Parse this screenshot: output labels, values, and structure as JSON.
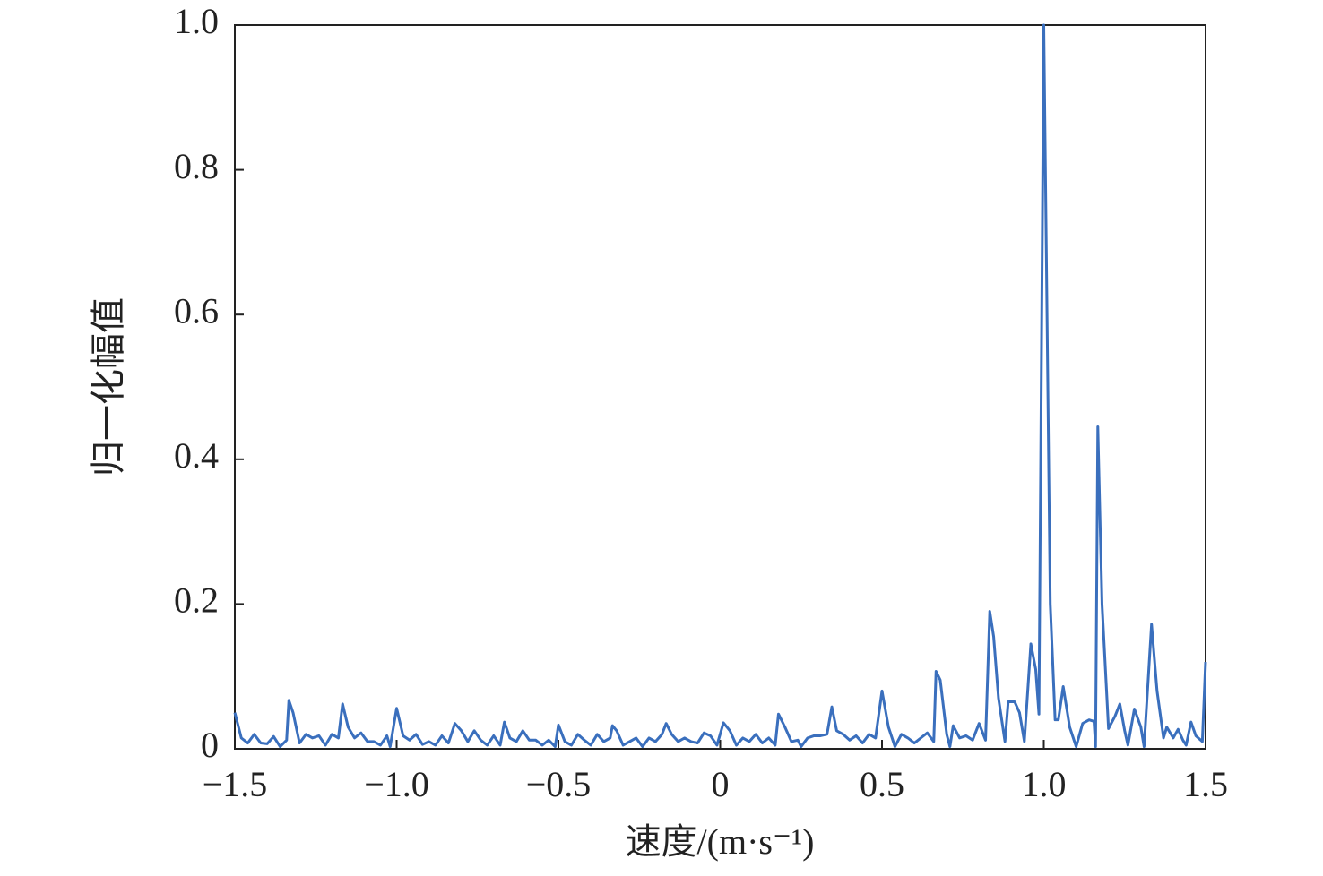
{
  "chart_data": {
    "type": "line",
    "xlabel": "速度/(m·s⁻¹)",
    "ylabel": "归一化幅值",
    "x": [
      -1.5,
      -1.48,
      -1.46,
      -1.44,
      -1.42,
      -1.4,
      -1.38,
      -1.36,
      -1.34,
      -1.333,
      -1.32,
      -1.3,
      -1.28,
      -1.26,
      -1.24,
      -1.22,
      -1.2,
      -1.18,
      -1.167,
      -1.15,
      -1.13,
      -1.11,
      -1.09,
      -1.07,
      -1.05,
      -1.03,
      -1.02,
      -1.0,
      -0.98,
      -0.96,
      -0.94,
      -0.92,
      -0.9,
      -0.88,
      -0.86,
      -0.84,
      -0.82,
      -0.8,
      -0.78,
      -0.76,
      -0.74,
      -0.72,
      -0.7,
      -0.68,
      -0.667,
      -0.65,
      -0.63,
      -0.61,
      -0.59,
      -0.57,
      -0.55,
      -0.53,
      -0.51,
      -0.5,
      -0.48,
      -0.46,
      -0.44,
      -0.42,
      -0.4,
      -0.38,
      -0.36,
      -0.34,
      -0.333,
      -0.32,
      -0.3,
      -0.28,
      -0.26,
      -0.24,
      -0.22,
      -0.2,
      -0.18,
      -0.167,
      -0.15,
      -0.13,
      -0.11,
      -0.09,
      -0.07,
      -0.05,
      -0.03,
      -0.01,
      0.01,
      0.03,
      0.05,
      0.07,
      0.09,
      0.11,
      0.13,
      0.15,
      0.17,
      0.18,
      0.2,
      0.22,
      0.24,
      0.25,
      0.27,
      0.29,
      0.31,
      0.33,
      0.345,
      0.36,
      0.38,
      0.4,
      0.42,
      0.44,
      0.46,
      0.48,
      0.5,
      0.52,
      0.54,
      0.56,
      0.58,
      0.6,
      0.62,
      0.64,
      0.66,
      0.667,
      0.68,
      0.7,
      0.71,
      0.72,
      0.74,
      0.76,
      0.78,
      0.8,
      0.82,
      0.833,
      0.845,
      0.86,
      0.88,
      0.89,
      0.91,
      0.925,
      0.94,
      0.96,
      0.975,
      0.985,
      1.0,
      1.02,
      1.035,
      1.045,
      1.06,
      1.08,
      1.1,
      1.12,
      1.14,
      1.155,
      1.16,
      1.167,
      1.18,
      1.2,
      1.22,
      1.235,
      1.25,
      1.26,
      1.28,
      1.3,
      1.31,
      1.333,
      1.35,
      1.37,
      1.38,
      1.4,
      1.415,
      1.43,
      1.44,
      1.455,
      1.47,
      1.49,
      1.5
    ],
    "series": [
      {
        "color": "#3a6fbd",
        "values": [
          0.05,
          0.015,
          0.008,
          0.02,
          0.008,
          0.007,
          0.017,
          0.003,
          0.012,
          0.067,
          0.05,
          0.008,
          0.02,
          0.015,
          0.018,
          0.005,
          0.02,
          0.015,
          0.062,
          0.03,
          0.015,
          0.022,
          0.01,
          0.01,
          0.005,
          0.018,
          0.003,
          0.056,
          0.018,
          0.012,
          0.02,
          0.006,
          0.01,
          0.005,
          0.018,
          0.008,
          0.035,
          0.025,
          0.01,
          0.025,
          0.012,
          0.005,
          0.018,
          0.005,
          0.037,
          0.015,
          0.01,
          0.025,
          0.012,
          0.012,
          0.005,
          0.012,
          0.003,
          0.033,
          0.01,
          0.005,
          0.02,
          0.012,
          0.005,
          0.02,
          0.01,
          0.015,
          0.032,
          0.025,
          0.005,
          0.01,
          0.015,
          0.003,
          0.015,
          0.01,
          0.02,
          0.035,
          0.02,
          0.01,
          0.015,
          0.01,
          0.008,
          0.022,
          0.018,
          0.005,
          0.036,
          0.025,
          0.005,
          0.015,
          0.01,
          0.02,
          0.008,
          0.015,
          0.005,
          0.048,
          0.03,
          0.01,
          0.012,
          0.003,
          0.015,
          0.018,
          0.018,
          0.02,
          0.058,
          0.025,
          0.02,
          0.012,
          0.018,
          0.008,
          0.02,
          0.015,
          0.08,
          0.03,
          0.003,
          0.02,
          0.015,
          0.008,
          0.015,
          0.022,
          0.01,
          0.107,
          0.095,
          0.02,
          0.003,
          0.032,
          0.015,
          0.018,
          0.012,
          0.035,
          0.012,
          0.19,
          0.155,
          0.07,
          0.01,
          0.065,
          0.065,
          0.05,
          0.01,
          0.145,
          0.11,
          0.048,
          1.0,
          0.2,
          0.04,
          0.04,
          0.086,
          0.03,
          0.003,
          0.035,
          0.04,
          0.038,
          0.003,
          0.445,
          0.2,
          0.028,
          0.045,
          0.062,
          0.025,
          0.005,
          0.055,
          0.03,
          0.003,
          0.172,
          0.08,
          0.015,
          0.03,
          0.015,
          0.027,
          0.012,
          0.005,
          0.037,
          0.018,
          0.01,
          0.12
        ]
      }
    ],
    "xlim": [
      -1.5,
      1.5
    ],
    "xticks": [
      {
        "value": -1.5,
        "label": "−1.5"
      },
      {
        "value": -1.0,
        "label": "−1.0"
      },
      {
        "value": -0.5,
        "label": "−0.5"
      },
      0,
      0.5,
      {
        "value": 1.0,
        "label": "1.0"
      },
      1.5
    ],
    "ylim": [
      0,
      1.0
    ],
    "yticks": [
      0,
      0.2,
      0.4,
      0.6,
      0.8,
      {
        "value": 1.0,
        "label": "1.0"
      }
    ]
  }
}
